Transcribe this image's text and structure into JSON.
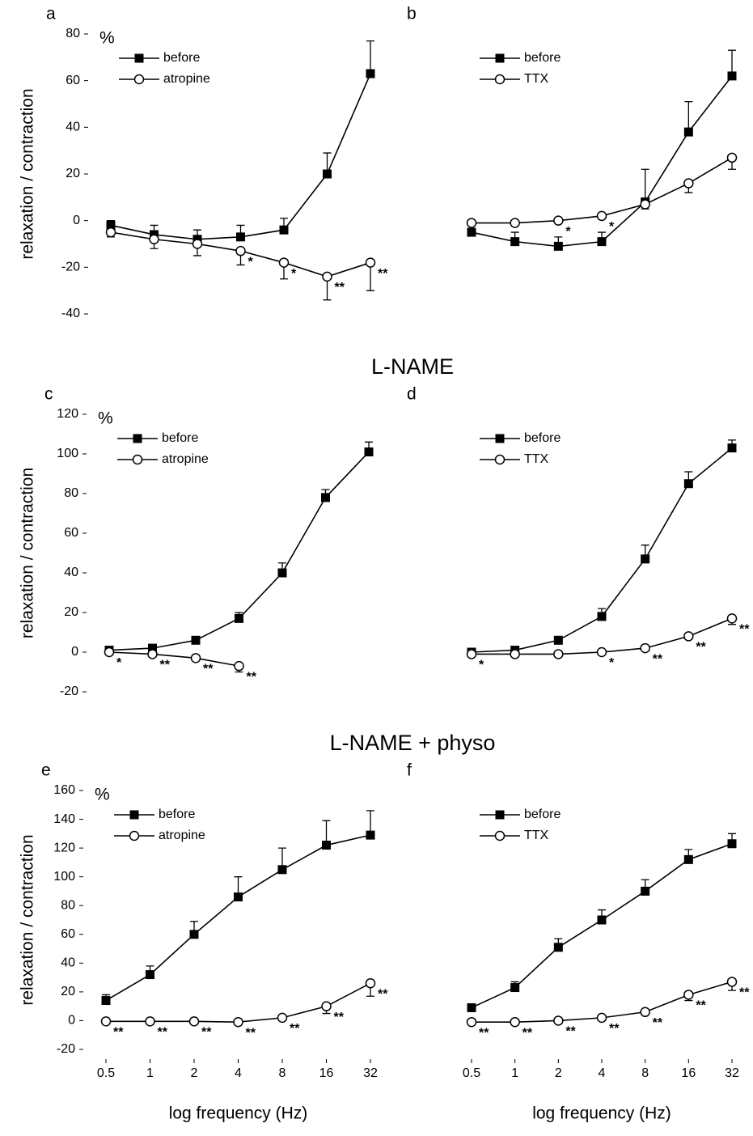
{
  "chart_data": [
    {
      "type": "line",
      "panel": "a",
      "unit": "%",
      "y_label": "relaxation / contraction",
      "x": [
        0.5,
        1,
        2,
        4,
        8,
        16,
        32
      ],
      "xscale": "log",
      "xlim": [
        0.5,
        32
      ],
      "ylim": [
        -40,
        80
      ],
      "yticks": [
        -40,
        -20,
        0,
        20,
        40,
        60,
        80
      ],
      "series": [
        {
          "name": "before",
          "color": "#000000",
          "marker": "square",
          "error_side": "up",
          "values": [
            -2,
            -6,
            -8,
            -7,
            -4,
            20,
            63
          ],
          "errors": [
            2,
            4,
            4,
            5,
            5,
            9,
            14
          ]
        },
        {
          "name": "atropine",
          "color": "#000000",
          "marker": "circle",
          "error_side": "down",
          "values": [
            -5,
            -8,
            -10,
            -13,
            -18,
            -24,
            -18
          ],
          "errors": [
            2,
            4,
            5,
            6,
            7,
            10,
            12
          ],
          "significance": [
            null,
            null,
            null,
            "*",
            "*",
            "**",
            "**"
          ]
        }
      ]
    },
    {
      "type": "line",
      "panel": "b",
      "x": [
        0.5,
        1,
        2,
        4,
        8,
        16,
        32
      ],
      "xscale": "log",
      "xlim": [
        0.5,
        32
      ],
      "ylim": [
        -40,
        80
      ],
      "series": [
        {
          "name": "before",
          "color": "#000000",
          "marker": "square",
          "error_side": "up",
          "values": [
            -5,
            -9,
            -11,
            -9,
            8,
            38,
            62
          ],
          "errors": [
            null,
            4,
            4,
            4,
            14,
            13,
            11
          ]
        },
        {
          "name": "TTX",
          "color": "#000000",
          "marker": "circle",
          "error_side": "down",
          "values": [
            -1,
            -1,
            0,
            2,
            7,
            16,
            27
          ],
          "errors": [
            null,
            null,
            null,
            null,
            2,
            4,
            5
          ],
          "significance": [
            null,
            null,
            "*",
            "*",
            null,
            null,
            null
          ]
        }
      ]
    },
    {
      "type": "line",
      "panel": "c",
      "unit": "%",
      "y_label": "relaxation / contraction",
      "section_title": "L-NAME",
      "x": [
        0.5,
        1,
        2,
        4,
        8,
        16,
        32
      ],
      "xscale": "log",
      "xlim": [
        0.5,
        32
      ],
      "ylim": [
        -20,
        120
      ],
      "yticks": [
        -20,
        0,
        20,
        40,
        60,
        80,
        100,
        120
      ],
      "series": [
        {
          "name": "before",
          "color": "#000000",
          "marker": "square",
          "error_side": "up",
          "values": [
            1,
            2,
            6,
            17,
            40,
            78,
            101
          ],
          "errors": [
            null,
            null,
            null,
            3,
            5,
            4,
            5
          ]
        },
        {
          "name": "atropine",
          "color": "#000000",
          "marker": "circle",
          "error_side": "down",
          "values": [
            0,
            -1,
            -3,
            -7,
            null,
            null,
            null
          ],
          "errors": [
            null,
            null,
            null,
            3,
            null,
            null,
            null
          ],
          "significance": [
            "*",
            "**",
            "**",
            "**",
            null,
            null,
            null
          ]
        }
      ]
    },
    {
      "type": "line",
      "panel": "d",
      "x": [
        0.5,
        1,
        2,
        4,
        8,
        16,
        32
      ],
      "xscale": "log",
      "xlim": [
        0.5,
        32
      ],
      "ylim": [
        -20,
        120
      ],
      "series": [
        {
          "name": "before",
          "color": "#000000",
          "marker": "square",
          "error_side": "up",
          "values": [
            0,
            1,
            6,
            18,
            47,
            85,
            103
          ],
          "errors": [
            null,
            null,
            null,
            4,
            7,
            6,
            4
          ]
        },
        {
          "name": "TTX",
          "color": "#000000",
          "marker": "circle",
          "error_side": "down",
          "values": [
            -1,
            -1,
            -1,
            0,
            2,
            8,
            17
          ],
          "errors": [
            null,
            null,
            null,
            null,
            null,
            null,
            3
          ],
          "significance": [
            "*",
            null,
            null,
            "*",
            "**",
            "**",
            "**"
          ]
        }
      ]
    },
    {
      "type": "line",
      "panel": "e",
      "unit": "%",
      "y_label": "relaxation / contraction",
      "section_title": "L-NAME + physo",
      "x_label": "log frequency (Hz)",
      "x": [
        0.5,
        1,
        2,
        4,
        8,
        16,
        32
      ],
      "xscale": "log",
      "xlim": [
        0.5,
        32
      ],
      "xticks": [
        0.5,
        1,
        2,
        4,
        8,
        16,
        32
      ],
      "ylim": [
        -20,
        160
      ],
      "yticks": [
        -20,
        0,
        20,
        40,
        60,
        80,
        100,
        120,
        140,
        160
      ],
      "series": [
        {
          "name": "before",
          "color": "#000000",
          "marker": "square",
          "error_side": "up",
          "values": [
            14,
            32,
            60,
            86,
            105,
            122,
            129
          ],
          "errors": [
            4,
            6,
            9,
            14,
            15,
            17,
            17
          ]
        },
        {
          "name": "atropine",
          "color": "#000000",
          "marker": "circle",
          "error_side": "down",
          "values": [
            -0.5,
            -0.5,
            -0.5,
            -1,
            2,
            10,
            26
          ],
          "errors": [
            null,
            null,
            null,
            null,
            null,
            5,
            9
          ],
          "significance": [
            "**",
            "**",
            "**",
            "**",
            "**",
            "**",
            "**"
          ]
        }
      ]
    },
    {
      "type": "line",
      "panel": "f",
      "x_label": "log frequency (Hz)",
      "x": [
        0.5,
        1,
        2,
        4,
        8,
        16,
        32
      ],
      "xscale": "log",
      "xlim": [
        0.5,
        32
      ],
      "xticks": [
        0.5,
        1,
        2,
        4,
        8,
        16,
        32
      ],
      "ylim": [
        -20,
        160
      ],
      "series": [
        {
          "name": "before",
          "color": "#000000",
          "marker": "square",
          "error_side": "up",
          "values": [
            9,
            23,
            51,
            70,
            90,
            112,
            123
          ],
          "errors": [
            2,
            4,
            6,
            7,
            8,
            7,
            7
          ]
        },
        {
          "name": "TTX",
          "color": "#000000",
          "marker": "circle",
          "error_side": "down",
          "values": [
            -1,
            -1,
            0,
            2,
            6,
            18,
            27
          ],
          "errors": [
            null,
            null,
            null,
            null,
            null,
            4,
            6
          ],
          "significance": [
            "**",
            "**",
            "**",
            "**",
            "**",
            "**",
            "**"
          ]
        }
      ]
    }
  ]
}
